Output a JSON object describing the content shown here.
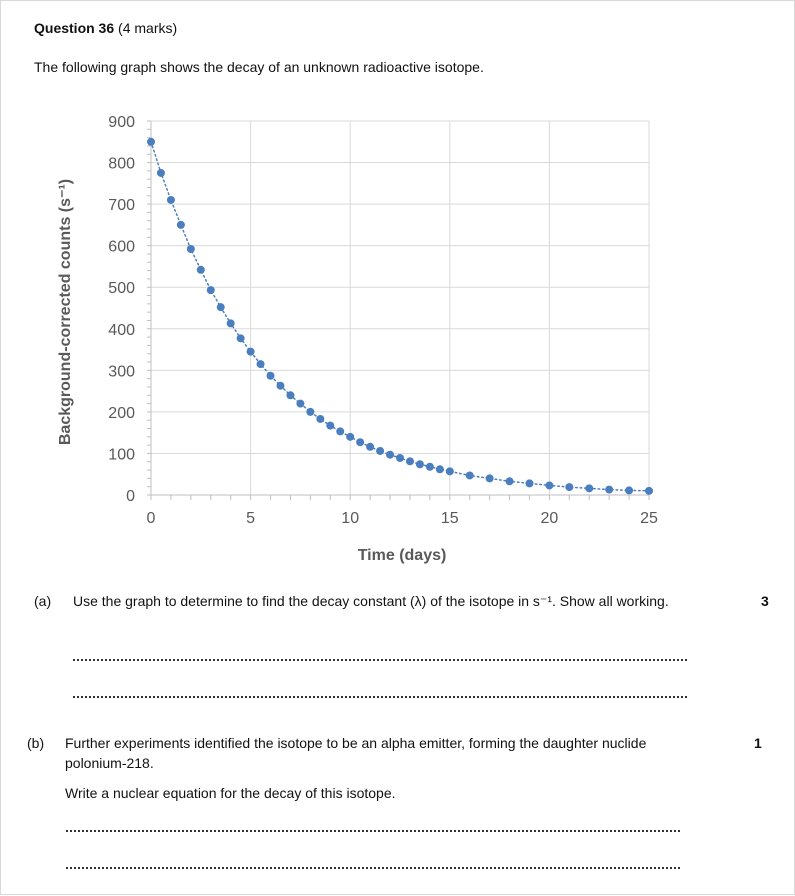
{
  "question": {
    "label": "Question 36",
    "marks": "(4 marks)"
  },
  "intro": "The following graph shows the decay of an unknown radioactive isotope.",
  "chart_data": {
    "type": "scatter",
    "xlabel": "Time (days)",
    "ylabel": "Background-corrected counts (s⁻¹)",
    "xlim": [
      0,
      25
    ],
    "ylim": [
      0,
      900
    ],
    "x_ticks": [
      "0",
      "5",
      "10",
      "15",
      "20",
      "25"
    ],
    "y_ticks": [
      "0",
      "100",
      "200",
      "300",
      "400",
      "500",
      "600",
      "700",
      "800",
      "900"
    ],
    "grid": true,
    "trendline": "dotted",
    "marker_color": "#4a7ebf",
    "series": [
      {
        "x": [
          0,
          0.5,
          1,
          1.5,
          2,
          2.5,
          3,
          3.5,
          4,
          4.5,
          5,
          5.5,
          6,
          6.5,
          7,
          7.5,
          8,
          8.5,
          9,
          9.5,
          10,
          10.5,
          11,
          11.5,
          12,
          12.5,
          13,
          13.5,
          14,
          14.5,
          15,
          16,
          17,
          18,
          19,
          20,
          21,
          22,
          23,
          24,
          25
        ],
        "y": [
          850,
          775,
          710,
          650,
          592,
          542,
          493,
          452,
          413,
          377,
          345,
          315,
          287,
          263,
          240,
          220,
          200,
          183,
          167,
          153,
          140,
          127,
          116,
          106,
          97,
          89,
          81,
          74,
          68,
          62,
          57,
          47,
          40,
          33,
          28,
          23,
          19,
          16,
          13,
          11,
          10
        ]
      }
    ]
  },
  "part_a": {
    "letter": "(a)",
    "text": "Use the graph to determine to find the decay constant (λ) of the isotope in s⁻¹.  Show all working.",
    "marks": "3"
  },
  "part_b": {
    "letter": "(b)",
    "text": "Further experiments identified the isotope to be an alpha emitter, forming the daughter nuclide polonium-218.",
    "text2": "Write a nuclear equation for the decay of this isotope.",
    "marks": "1"
  }
}
